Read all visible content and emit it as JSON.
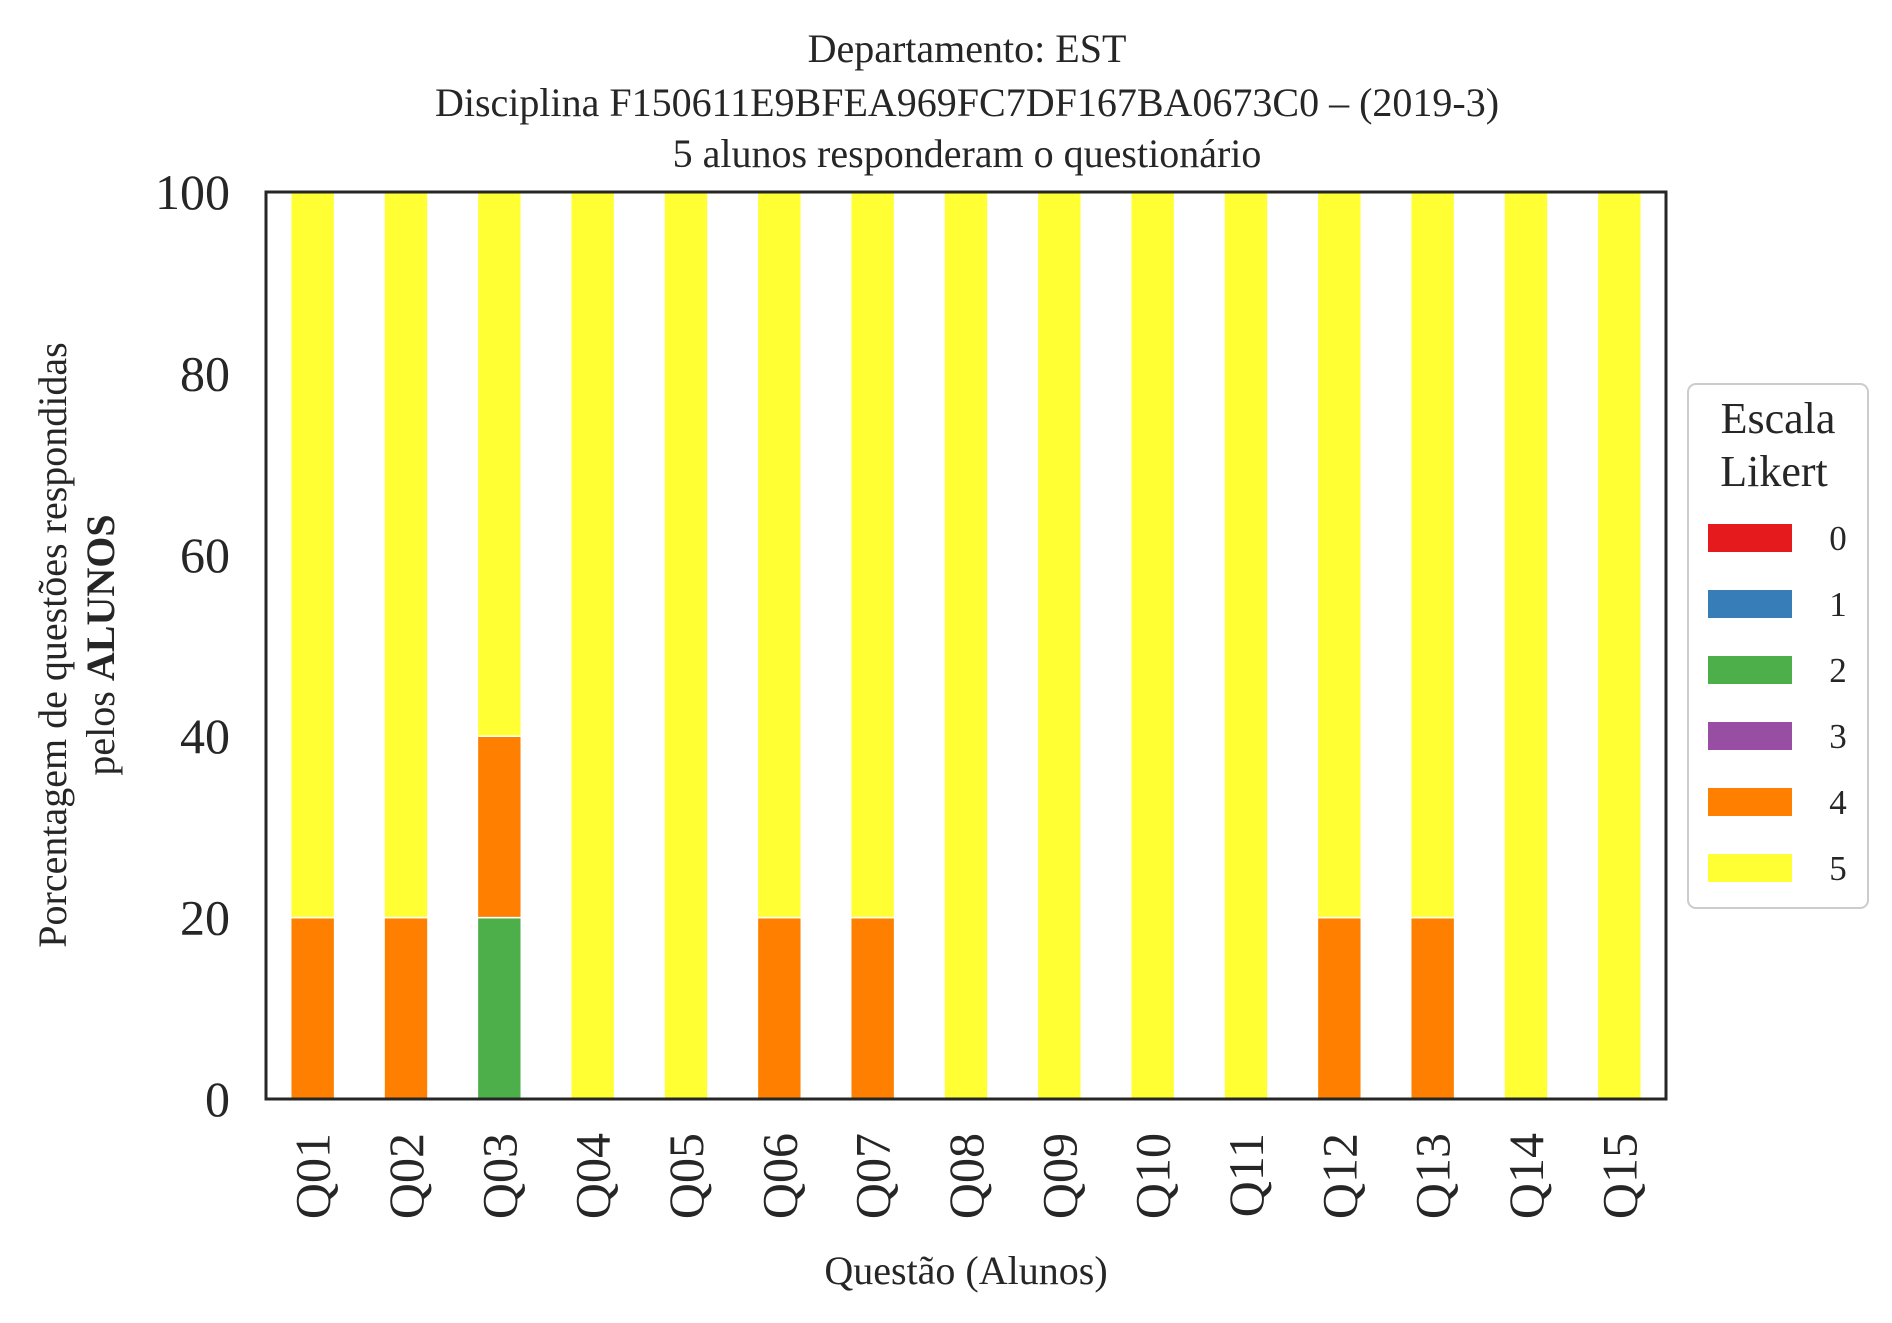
{
  "chart_data": {
    "type": "bar",
    "stacked": true,
    "title_lines": [
      "Departamento: EST",
      "Disciplina F150611E9BFEA969FC7DF167BA0673C0 – (2019-3)",
      "5 alunos responderam o questionário"
    ],
    "xlabel": "Questão (Alunos)",
    "ylabel_line1": "Porcentagem de questões respondidas",
    "ylabel_line2_prefix": "pelos ",
    "ylabel_line2_bold": "ALUNOS",
    "ylim": [
      0,
      100
    ],
    "yticks": [
      "0",
      "20",
      "40",
      "60",
      "80",
      "100"
    ],
    "categories": [
      "Q01",
      "Q02",
      "Q03",
      "Q04",
      "Q05",
      "Q06",
      "Q07",
      "Q08",
      "Q09",
      "Q10",
      "Q11",
      "Q12",
      "Q13",
      "Q14",
      "Q15"
    ],
    "series": [
      {
        "name": "0",
        "color": "#e41a1c",
        "values": [
          0,
          0,
          0,
          0,
          0,
          0,
          0,
          0,
          0,
          0,
          0,
          0,
          0,
          0,
          0
        ]
      },
      {
        "name": "1",
        "color": "#377eb8",
        "values": [
          0,
          0,
          0,
          0,
          0,
          0,
          0,
          0,
          0,
          0,
          0,
          0,
          0,
          0,
          0
        ]
      },
      {
        "name": "2",
        "color": "#4daf4a",
        "values": [
          0,
          0,
          20,
          0,
          0,
          0,
          0,
          0,
          0,
          0,
          0,
          0,
          0,
          0,
          0
        ]
      },
      {
        "name": "3",
        "color": "#984ea3",
        "values": [
          0,
          0,
          0,
          0,
          0,
          0,
          0,
          0,
          0,
          0,
          0,
          0,
          0,
          0,
          0
        ]
      },
      {
        "name": "4",
        "color": "#ff7f00",
        "values": [
          20,
          20,
          20,
          0,
          0,
          20,
          20,
          0,
          0,
          0,
          0,
          20,
          20,
          0,
          0
        ]
      },
      {
        "name": "5",
        "color": "#ffff33",
        "values": [
          80,
          80,
          60,
          100,
          100,
          80,
          80,
          100,
          100,
          100,
          100,
          80,
          80,
          100,
          100
        ]
      }
    ],
    "legend": {
      "title_lines": [
        "Escala",
        "Likert"
      ],
      "placement": "center-right outside"
    },
    "grid": false
  }
}
